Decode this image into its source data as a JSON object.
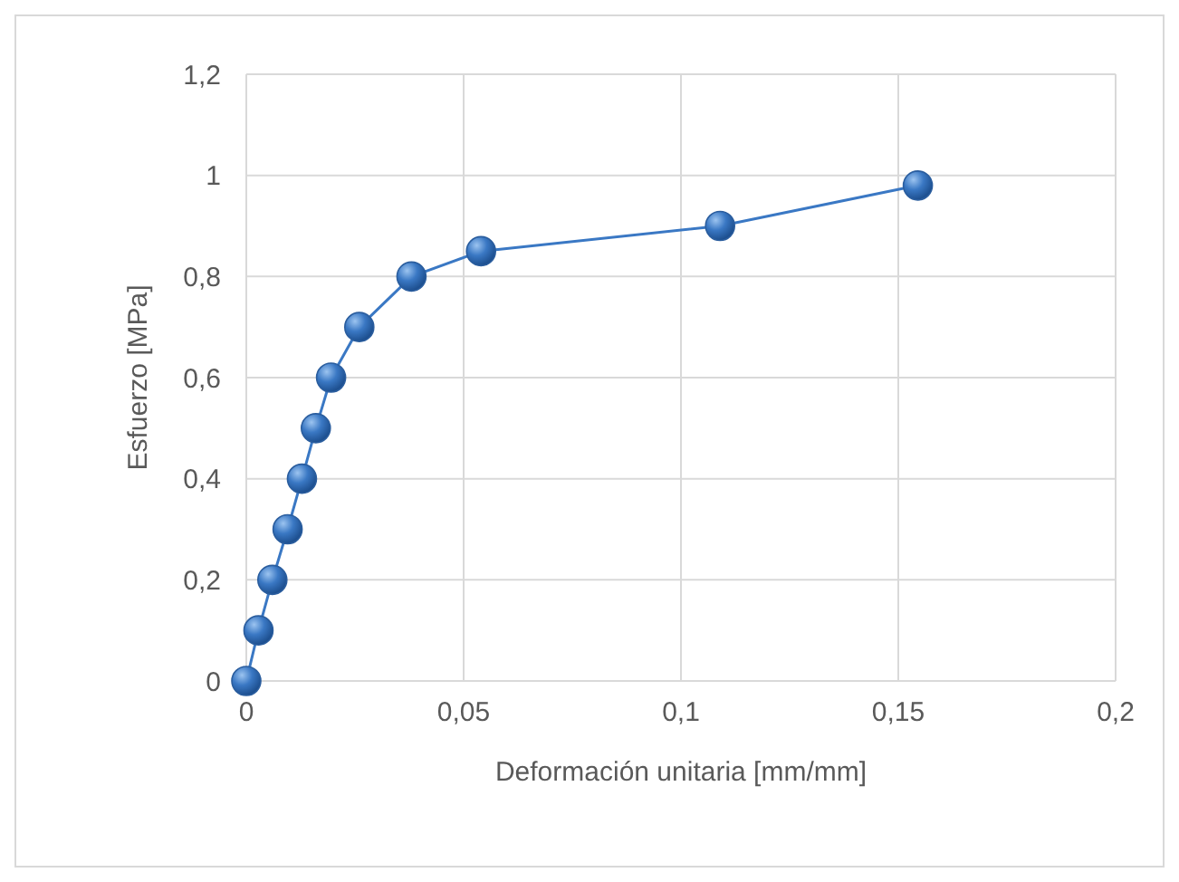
{
  "chart_data": {
    "type": "line",
    "xlabel": "Deformación unitaria [mm/mm]",
    "ylabel": "Esfuerzo [MPa]",
    "x": [
      0,
      0.0028,
      0.006,
      0.0095,
      0.0128,
      0.016,
      0.0195,
      0.026,
      0.038,
      0.054,
      0.109,
      0.1545
    ],
    "series": [
      {
        "color": "#3a78c4",
        "values": [
          0,
          0.1,
          0.2,
          0.3,
          0.4,
          0.5,
          0.6,
          0.7,
          0.8,
          0.85,
          0.9,
          0.98
        ]
      }
    ],
    "xlim": [
      0,
      0.2
    ],
    "xticks": [
      {
        "value": 0,
        "label": "0"
      },
      {
        "value": 0.05,
        "label": "0,05"
      },
      {
        "value": 0.1,
        "label": "0,1"
      },
      {
        "value": 0.15,
        "label": "0,15"
      },
      {
        "value": 0.2,
        "label": "0,2"
      }
    ],
    "ylim": [
      0,
      1.2
    ],
    "yticks": [
      {
        "value": 0,
        "label": "0"
      },
      {
        "value": 0.2,
        "label": "0,2"
      },
      {
        "value": 0.4,
        "label": "0,4"
      },
      {
        "value": 0.6,
        "label": "0,6"
      },
      {
        "value": 0.8,
        "label": "0,8"
      },
      {
        "value": 1,
        "label": "1"
      },
      {
        "value": 1.2,
        "label": "1,2"
      }
    ],
    "grid": true,
    "marker": "circle",
    "line_style": "solid"
  }
}
